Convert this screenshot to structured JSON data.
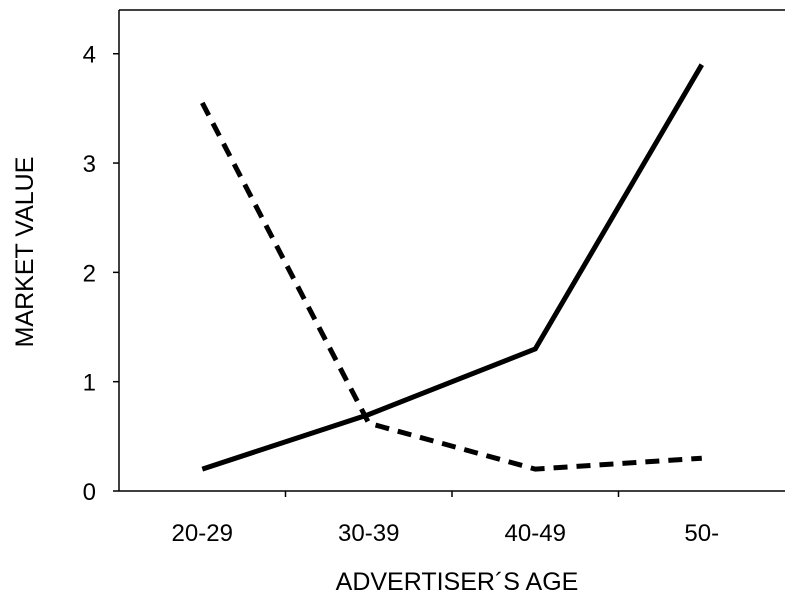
{
  "chart_data": {
    "type": "line",
    "title": "",
    "xlabel": "ADVERTISER´S AGE",
    "ylabel": "MARKET VALUE",
    "categories": [
      "20-29",
      "30-39",
      "40-49",
      "50-"
    ],
    "ylim": [
      0,
      4.4
    ],
    "yticks": [
      0,
      1,
      2,
      3,
      4
    ],
    "grid": false,
    "legend": "none",
    "series": [
      {
        "style": "solid",
        "color": "#000000",
        "values": [
          0.2,
          0.7,
          1.3,
          3.9
        ]
      },
      {
        "style": "dashed",
        "color": "#000000",
        "values": [
          3.55,
          0.62,
          0.2,
          0.3
        ]
      }
    ]
  }
}
